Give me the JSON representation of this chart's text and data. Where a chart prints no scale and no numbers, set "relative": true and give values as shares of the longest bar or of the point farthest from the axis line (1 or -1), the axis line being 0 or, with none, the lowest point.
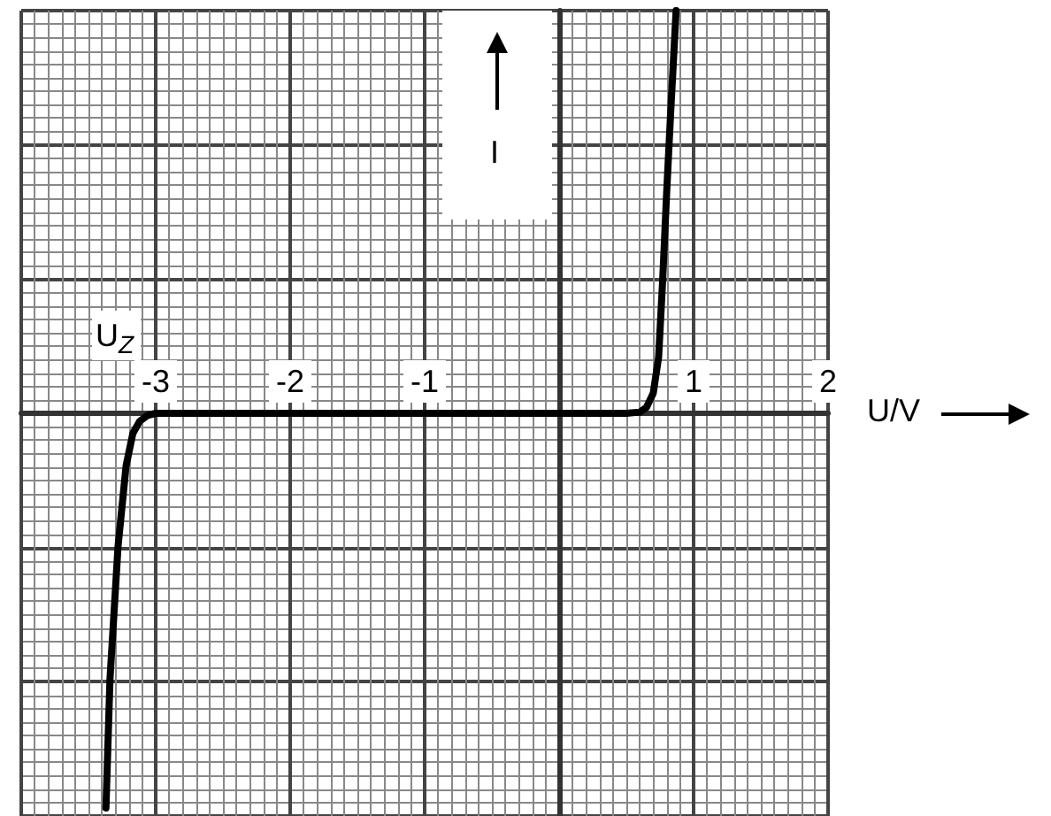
{
  "chart_data": {
    "type": "line",
    "xlabel": "U/V",
    "ylabel": "I",
    "relative": true,
    "x": [
      -3.37,
      -3.34,
      -3.28,
      -3.22,
      -3.17,
      -3.12,
      -3.06,
      -3.0,
      -2.5,
      -1,
      0,
      0.5,
      0.6,
      0.65,
      0.7,
      0.74,
      0.77,
      0.8,
      0.83,
      0.87
    ],
    "values": [
      -0.98,
      -0.66,
      -0.33,
      -0.13,
      -0.05,
      -0.02,
      -0.005,
      0,
      0,
      0,
      0,
      0,
      0.003,
      0.015,
      0.05,
      0.14,
      0.33,
      0.55,
      0.75,
      1
    ],
    "color": "#000000",
    "marker": "none",
    "line_style": "solid",
    "grid": true,
    "xlim": [
      -4,
      2
    ],
    "xticks": [
      -3,
      -2,
      -1,
      1,
      2
    ],
    "annotations": [
      "U$_{Z}$"
    ]
  }
}
